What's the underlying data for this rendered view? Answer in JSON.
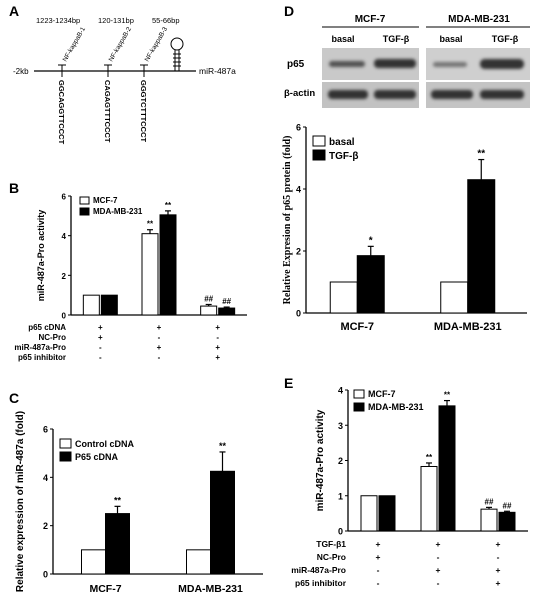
{
  "colors": {
    "bar_open": "#ffffff",
    "bar_filled": "#000000",
    "blot_bg": "#c9c9c9",
    "blot_band": "#2a2a2a"
  },
  "panels": {
    "a": "A",
    "b": "B",
    "c": "C",
    "d": "D",
    "e": "E"
  },
  "panel_a": {
    "ruler_start": "-2kb",
    "gene": "miR-487a",
    "sites": [
      {
        "name": "NF-kappaB-1",
        "range": "1223-1234bp",
        "seq": "GGCAGGTTCCCT"
      },
      {
        "name": "NF-kappaB-2",
        "range": "120-131bp",
        "seq": "CAGAGTTTCCCT"
      },
      {
        "name": "NF-kappaB-3",
        "range": "",
        "seq": "GGGTCTTTCCCT"
      }
    ],
    "hairpin_range": "55-66bp"
  },
  "panel_d_blot": {
    "cell_lines": [
      "MCF-7",
      "MDA-MB-231"
    ],
    "conditions": [
      "basal",
      "TGF-β",
      "basal",
      "TGF-β"
    ],
    "rows": [
      "p65",
      "β-actin"
    ]
  },
  "chart_data": [
    {
      "panel": "B",
      "type": "bar",
      "ylabel": "miR-487a-Pro activity",
      "ylim": [
        0,
        6
      ],
      "yticks": [
        0,
        2,
        4,
        6
      ],
      "legend_position": "top-left",
      "series": [
        {
          "name": "MCF-7",
          "values": [
            1.0,
            4.1,
            0.45
          ],
          "errors": [
            0,
            0.2,
            0.08
          ],
          "sig": [
            "",
            "**",
            "##"
          ]
        },
        {
          "name": "MDA-MB-231",
          "values": [
            1.0,
            5.05,
            0.35
          ],
          "errors": [
            0,
            0.2,
            0.05
          ],
          "sig": [
            "",
            "**",
            "##"
          ]
        }
      ],
      "conditions": [
        {
          "label": "p65 cDNA",
          "values": [
            "+",
            "+",
            "+"
          ]
        },
        {
          "label": "NC-Pro",
          "values": [
            "+",
            "-",
            "-"
          ]
        },
        {
          "label": "miR-487a-Pro",
          "values": [
            "-",
            "+",
            "+"
          ]
        },
        {
          "label": "p65 inhibitor",
          "values": [
            "-",
            "-",
            "+"
          ]
        }
      ]
    },
    {
      "panel": "C",
      "type": "bar",
      "ylabel": "Relative expression of miR-487a (fold)",
      "ylim": [
        0,
        6
      ],
      "yticks": [
        0,
        2,
        4,
        6
      ],
      "legend_position": "top-left",
      "categories": [
        "MCF-7",
        "MDA-MB-231"
      ],
      "series": [
        {
          "name": "Control cDNA",
          "values": [
            1.0,
            1.0
          ],
          "errors": [
            0,
            0
          ],
          "sig": [
            "",
            ""
          ]
        },
        {
          "name": "P65 cDNA",
          "values": [
            2.5,
            4.25
          ],
          "errors": [
            0.3,
            0.8
          ],
          "sig": [
            "**",
            "**"
          ]
        }
      ]
    },
    {
      "panel": "D",
      "type": "bar",
      "ylabel": "Relative Expresion of p65 protein (fold)",
      "ylim": [
        0,
        6
      ],
      "yticks": [
        0,
        2,
        4,
        6
      ],
      "legend_position": "top-left",
      "categories": [
        "MCF-7",
        "MDA-MB-231"
      ],
      "series": [
        {
          "name": "basal",
          "values": [
            1.0,
            1.0
          ],
          "errors": [
            0,
            0
          ],
          "sig": [
            "",
            ""
          ]
        },
        {
          "name": "TGF-β",
          "values": [
            1.85,
            4.3
          ],
          "errors": [
            0.3,
            0.65
          ],
          "sig": [
            "*",
            "**"
          ]
        }
      ]
    },
    {
      "panel": "E",
      "type": "bar",
      "ylabel": "miR-487a-Pro activity",
      "ylim": [
        0,
        4
      ],
      "yticks": [
        0,
        1,
        2,
        3,
        4
      ],
      "legend_position": "top-left",
      "series": [
        {
          "name": "MCF-7",
          "values": [
            1.0,
            1.83,
            0.62
          ],
          "errors": [
            0,
            0.1,
            0.05
          ],
          "sig": [
            "",
            "**",
            "##"
          ]
        },
        {
          "name": "MDA-MB-231",
          "values": [
            1.0,
            3.55,
            0.53
          ],
          "errors": [
            0,
            0.15,
            0.03
          ],
          "sig": [
            "",
            "**",
            "##"
          ]
        }
      ],
      "conditions": [
        {
          "label": "TGF-β1",
          "values": [
            "+",
            "+",
            "+"
          ]
        },
        {
          "label": "NC-Pro",
          "values": [
            "+",
            "-",
            "-"
          ]
        },
        {
          "label": "miR-487a-Pro",
          "values": [
            "-",
            "+",
            "+"
          ]
        },
        {
          "label": "p65 inhibitor",
          "values": [
            "-",
            "-",
            "+"
          ]
        }
      ]
    }
  ]
}
